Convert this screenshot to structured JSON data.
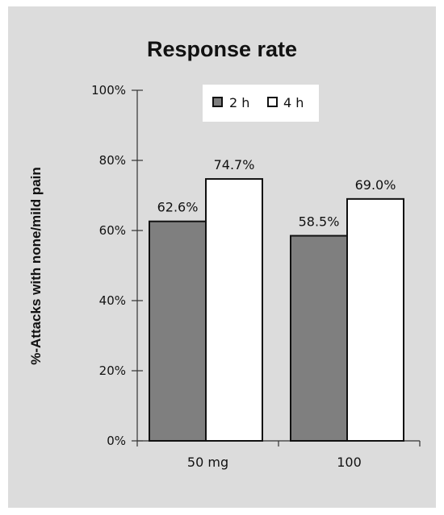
{
  "chart_data": {
    "type": "bar",
    "title": "Response rate",
    "xlabel": "",
    "ylabel": "%-Attacks with none/mild pain",
    "categories": [
      "50 mg",
      "100"
    ],
    "series": [
      {
        "name": "2 h",
        "values": [
          62.6,
          58.5
        ],
        "labels": [
          "62.6%",
          "58.5%"
        ],
        "color": "#7f7f7f"
      },
      {
        "name": "4 h",
        "values": [
          74.7,
          69.0
        ],
        "labels": [
          "74.7%",
          "69.0%"
        ],
        "color": "#ffffff"
      }
    ],
    "ylim": [
      0,
      100
    ],
    "yticks": [
      0,
      20,
      40,
      60,
      80,
      100
    ],
    "ytick_labels": [
      "0%",
      "20%",
      "40%",
      "60%",
      "80%",
      "100%"
    ],
    "legend": "top-center",
    "grid": false,
    "background": "#dcdcdc"
  }
}
